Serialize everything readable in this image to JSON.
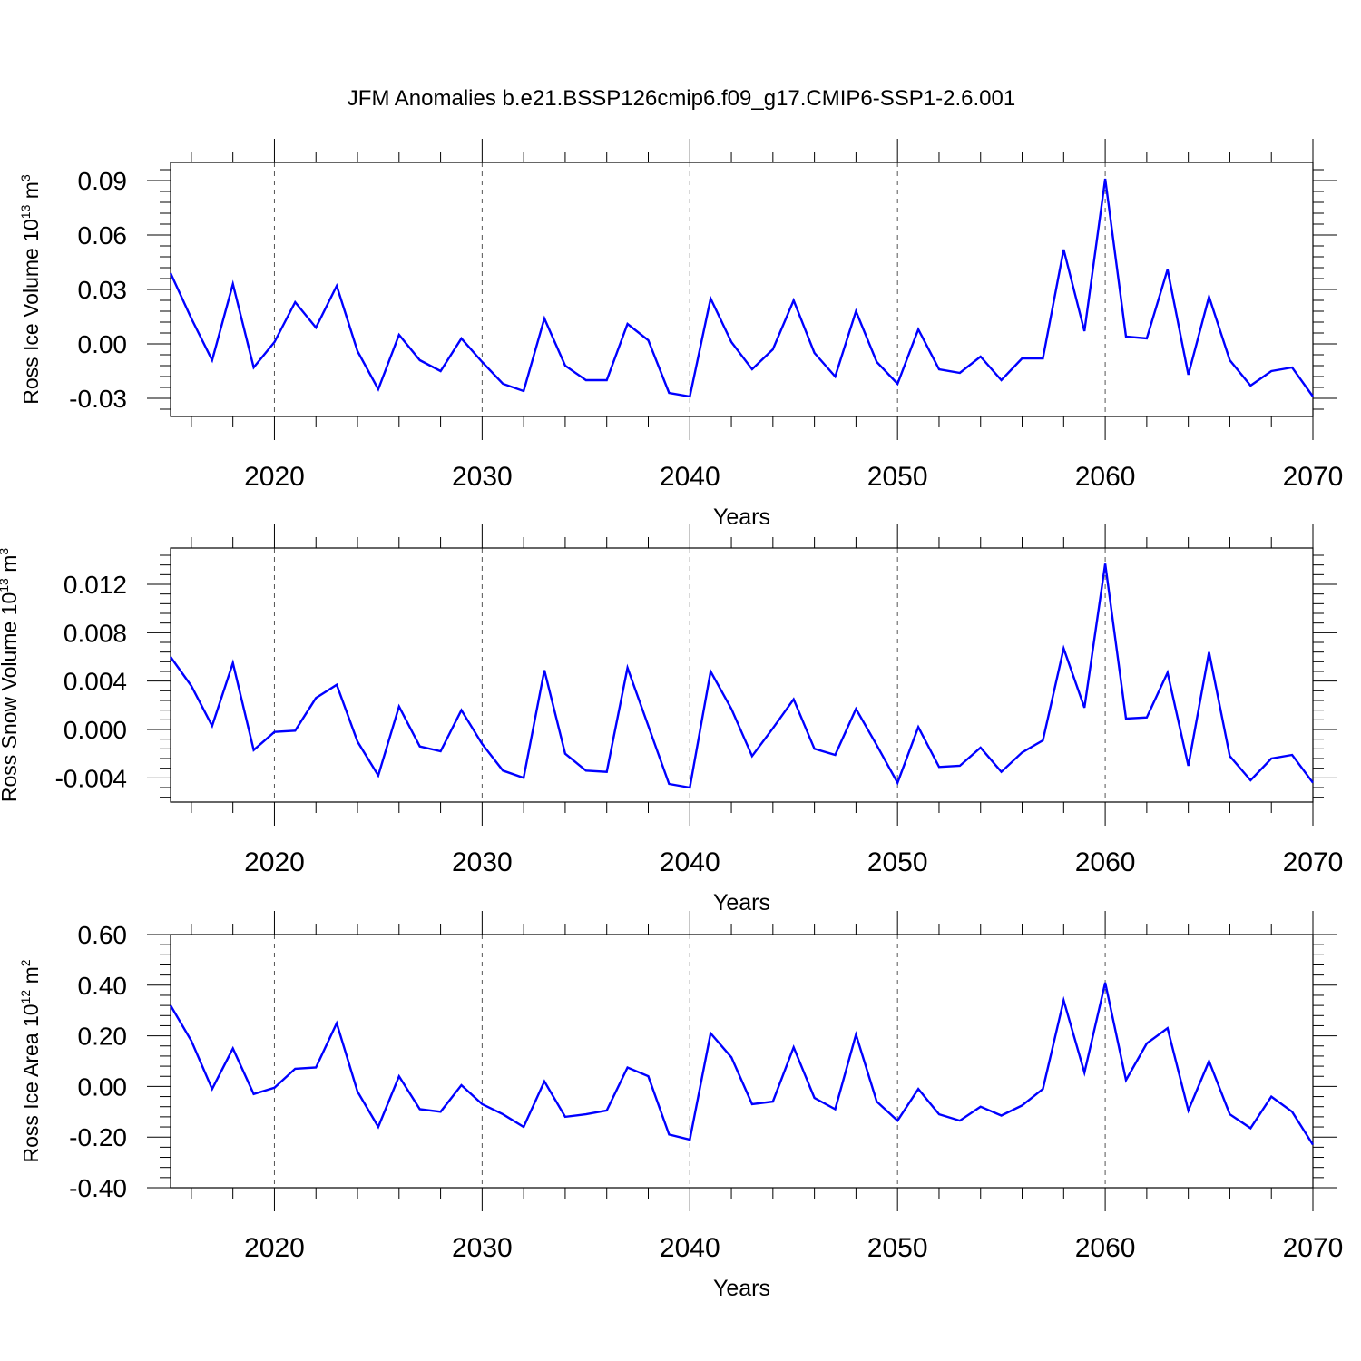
{
  "title": "JFM Anomalies b.e21.BSSP126cmip6.f09_g17.CMIP6-SSP1-2.6.001",
  "colors": {
    "line": "#0000ff",
    "axis": "#000000",
    "grid": "#555555"
  },
  "chart_data": [
    {
      "type": "line",
      "ylabel": {
        "text": "Ross Ice Volume 10",
        "exp": "13",
        "unit": " m",
        "unit_exp": "3"
      },
      "xlabel": "Years",
      "xlim": [
        2015,
        2070
      ],
      "ylim": [
        -0.04,
        0.1
      ],
      "yticks": [
        0.09,
        0.06,
        0.03,
        0.0,
        -0.03
      ],
      "ytick_labels": [
        "0.09",
        "0.06",
        "0.03",
        "0.00",
        "-0.03"
      ],
      "ygrid": false,
      "x": [
        2015,
        2016,
        2017,
        2018,
        2019,
        2020,
        2021,
        2022,
        2023,
        2024,
        2025,
        2026,
        2027,
        2028,
        2029,
        2030,
        2031,
        2032,
        2033,
        2034,
        2035,
        2036,
        2037,
        2038,
        2039,
        2040,
        2041,
        2042,
        2043,
        2044,
        2045,
        2046,
        2047,
        2048,
        2049,
        2050,
        2051,
        2052,
        2053,
        2054,
        2055,
        2056,
        2057,
        2058,
        2059,
        2060,
        2061,
        2062,
        2063,
        2064,
        2065,
        2066,
        2067,
        2068,
        2069,
        2070
      ],
      "values": [
        0.039,
        0.014,
        -0.009,
        0.033,
        -0.013,
        0.001,
        0.023,
        0.009,
        0.032,
        -0.004,
        -0.025,
        0.005,
        -0.009,
        -0.015,
        0.003,
        -0.01,
        -0.022,
        -0.026,
        0.014,
        -0.012,
        -0.02,
        -0.02,
        0.011,
        0.002,
        -0.027,
        -0.029,
        0.025,
        0.001,
        -0.014,
        -0.003,
        0.024,
        -0.005,
        -0.018,
        0.018,
        -0.01,
        -0.022,
        0.008,
        -0.014,
        -0.016,
        -0.007,
        -0.02,
        -0.008,
        -0.008,
        0.052,
        0.007,
        0.091,
        0.004,
        0.003,
        0.041,
        -0.017,
        0.026,
        -0.009,
        -0.023,
        -0.015,
        -0.013,
        -0.029
      ]
    },
    {
      "type": "line",
      "ylabel": {
        "text": "Ross Snow Volume 10",
        "exp": "13",
        "unit": " m",
        "unit_exp": "3"
      },
      "xlabel": "Years",
      "xlim": [
        2015,
        2070
      ],
      "ylim": [
        -0.006,
        0.015
      ],
      "yticks": [
        0.012,
        0.008,
        0.004,
        0.0,
        -0.004
      ],
      "ytick_labels": [
        "0.012",
        "0.008",
        "0.004",
        "0.000",
        "-0.004"
      ],
      "ygrid": false,
      "x": [
        2015,
        2016,
        2017,
        2018,
        2019,
        2020,
        2021,
        2022,
        2023,
        2024,
        2025,
        2026,
        2027,
        2028,
        2029,
        2030,
        2031,
        2032,
        2033,
        2034,
        2035,
        2036,
        2037,
        2038,
        2039,
        2040,
        2041,
        2042,
        2043,
        2044,
        2045,
        2046,
        2047,
        2048,
        2049,
        2050,
        2051,
        2052,
        2053,
        2054,
        2055,
        2056,
        2057,
        2058,
        2059,
        2060,
        2061,
        2062,
        2063,
        2064,
        2065,
        2066,
        2067,
        2068,
        2069,
        2070
      ],
      "values": [
        0.006,
        0.0036,
        0.0003,
        0.0055,
        -0.0017,
        -0.0002,
        -0.0001,
        0.0026,
        0.0037,
        -0.001,
        -0.0038,
        0.0019,
        -0.0014,
        -0.0018,
        0.0016,
        -0.0012,
        -0.0034,
        -0.004,
        0.0049,
        -0.002,
        -0.0034,
        -0.0035,
        0.0051,
        0.0003,
        -0.0045,
        -0.0048,
        0.0048,
        0.0017,
        -0.0022,
        0.0001,
        0.0025,
        -0.0016,
        -0.0021,
        0.0017,
        -0.0013,
        -0.0044,
        0.0002,
        -0.0031,
        -0.003,
        -0.0015,
        -0.0035,
        -0.0019,
        -0.0009,
        0.0067,
        0.0018,
        0.0137,
        0.0009,
        0.001,
        0.0047,
        -0.003,
        0.0064,
        -0.0022,
        -0.0042,
        -0.0024,
        -0.0021,
        -0.0044
      ]
    },
    {
      "type": "line",
      "ylabel": {
        "text": "Ross Ice Area 10",
        "exp": "12",
        "unit": " m",
        "unit_exp": "2"
      },
      "xlabel": "Years",
      "xlim": [
        2015,
        2070
      ],
      "ylim": [
        -0.4,
        0.6
      ],
      "yticks": [
        0.6,
        0.4,
        0.2,
        0.0,
        -0.2,
        -0.4
      ],
      "ytick_labels": [
        "0.60",
        "0.40",
        "0.20",
        "0.00",
        "-0.20",
        "-0.40"
      ],
      "ygrid": false,
      "x": [
        2015,
        2016,
        2017,
        2018,
        2019,
        2020,
        2021,
        2022,
        2023,
        2024,
        2025,
        2026,
        2027,
        2028,
        2029,
        2030,
        2031,
        2032,
        2033,
        2034,
        2035,
        2036,
        2037,
        2038,
        2039,
        2040,
        2041,
        2042,
        2043,
        2044,
        2045,
        2046,
        2047,
        2048,
        2049,
        2050,
        2051,
        2052,
        2053,
        2054,
        2055,
        2056,
        2057,
        2058,
        2059,
        2060,
        2061,
        2062,
        2063,
        2064,
        2065,
        2066,
        2067,
        2068,
        2069,
        2070
      ],
      "values": [
        0.32,
        0.18,
        -0.01,
        0.15,
        -0.03,
        -0.005,
        0.07,
        0.075,
        0.25,
        -0.02,
        -0.16,
        0.04,
        -0.09,
        -0.1,
        0.005,
        -0.07,
        -0.11,
        -0.16,
        0.02,
        -0.12,
        -0.11,
        -0.095,
        0.075,
        0.04,
        -0.19,
        -0.21,
        0.21,
        0.115,
        -0.07,
        -0.06,
        0.155,
        -0.045,
        -0.09,
        0.205,
        -0.06,
        -0.135,
        -0.01,
        -0.11,
        -0.135,
        -0.08,
        -0.115,
        -0.075,
        -0.01,
        0.34,
        0.055,
        0.41,
        0.025,
        0.17,
        0.23,
        -0.095,
        0.1,
        -0.11,
        -0.165,
        -0.04,
        -0.1,
        -0.23
      ]
    }
  ],
  "xticks": [
    2020,
    2030,
    2040,
    2050,
    2060,
    2070
  ],
  "xtick_labels": [
    "2020",
    "2030",
    "2040",
    "2050",
    "2060",
    "2070"
  ]
}
